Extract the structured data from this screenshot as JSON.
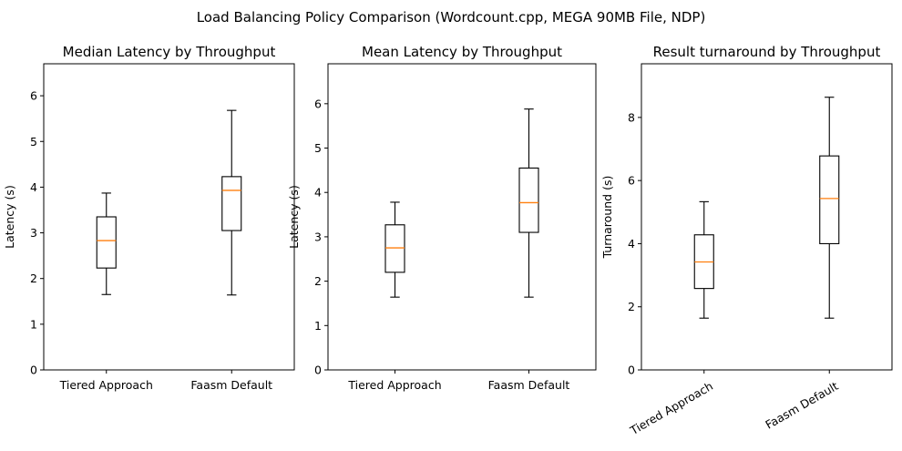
{
  "figure_title": "Load Balancing Policy Comparison (Wordcount.cpp, MEGA 90MB File, NDP)",
  "chart_data": [
    {
      "type": "box",
      "title": "Median Latency by Throughput",
      "xlabel": "",
      "ylabel": "Latency (s)",
      "ylim": [
        0,
        6.7
      ],
      "yticks": [
        0,
        1,
        2,
        3,
        4,
        5,
        6
      ],
      "xtick_rotation": 0,
      "grid": false,
      "categories": [
        "Tiered Approach",
        "Faasm Default"
      ],
      "boxes": [
        {
          "whisker_low": 1.65,
          "q1": 2.23,
          "median": 2.83,
          "q3": 3.35,
          "whisker_high": 3.87
        },
        {
          "whisker_low": 1.64,
          "q1": 3.05,
          "median": 3.93,
          "q3": 4.23,
          "whisker_high": 5.68
        }
      ]
    },
    {
      "type": "box",
      "title": "Mean Latency by Throughput",
      "xlabel": "",
      "ylabel": "Latency (s)",
      "ylim": [
        0,
        6.9
      ],
      "yticks": [
        0,
        1,
        2,
        3,
        4,
        5,
        6
      ],
      "xtick_rotation": 0,
      "grid": false,
      "categories": [
        "Tiered Approach",
        "Faasm Default"
      ],
      "boxes": [
        {
          "whisker_low": 1.64,
          "q1": 2.2,
          "median": 2.75,
          "q3": 3.27,
          "whisker_high": 3.78
        },
        {
          "whisker_low": 1.64,
          "q1": 3.1,
          "median": 3.77,
          "q3": 4.55,
          "whisker_high": 5.88
        }
      ]
    },
    {
      "type": "box",
      "title": "Result turnaround by Throughput",
      "xlabel": "",
      "ylabel": "Turnaround (s)",
      "ylim": [
        0,
        9.7
      ],
      "yticks": [
        0,
        2,
        4,
        6,
        8
      ],
      "xtick_rotation": -30,
      "grid": false,
      "categories": [
        "Tiered Approach",
        "Faasm Default"
      ],
      "boxes": [
        {
          "whisker_low": 1.64,
          "q1": 2.58,
          "median": 3.42,
          "q3": 4.28,
          "whisker_high": 5.33
        },
        {
          "whisker_low": 1.64,
          "q1": 4.0,
          "median": 5.43,
          "q3": 6.78,
          "whisker_high": 8.64
        }
      ]
    }
  ],
  "colors": {
    "box": "#000000",
    "median": "#ff7f0e",
    "axes": "#000000"
  }
}
